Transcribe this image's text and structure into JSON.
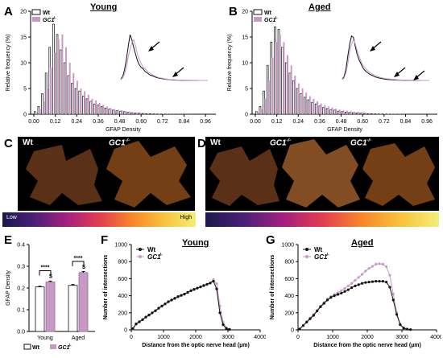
{
  "panels": {
    "A": {
      "letter": "A",
      "title": "Young"
    },
    "B": {
      "letter": "B",
      "title": "Aged"
    },
    "C": {
      "letter": "C",
      "img_labels": [
        "Wt",
        "GC1"
      ],
      "sup": "-/-"
    },
    "D": {
      "letter": "D",
      "img_labels": [
        "Wt",
        "GC1",
        "GC1"
      ],
      "sup": "-/-"
    },
    "E": {
      "letter": "E"
    },
    "F": {
      "letter": "F",
      "title": "Young"
    },
    "G": {
      "letter": "G",
      "title": "Aged"
    }
  },
  "colorbar": {
    "low": "Low",
    "high": "High"
  },
  "legend": {
    "wt": "Wt",
    "gc1": "GC1",
    "gc1_sup": "-/-"
  },
  "colors": {
    "wt": "#111111",
    "gc1": "#c79ac6",
    "wt_bar_fill": "#ffffff"
  },
  "chart_data": [
    {
      "type": "bar",
      "id": "A",
      "xlabel": "GFAP Density",
      "ylabel": "Relative frequency (%)",
      "ylim": [
        0,
        20
      ],
      "yticks": [
        0,
        5,
        10,
        15,
        20
      ],
      "xticks": [
        "0.00",
        "0.12",
        "0.24",
        "0.36",
        "0.48",
        "0.60",
        "0.72",
        "0.84",
        "0.96"
      ],
      "bin_width": 0.02,
      "series": [
        {
          "name": "Wt",
          "values": [
            0.5,
            1.5,
            4,
            8,
            13,
            17.5,
            15.5,
            12.5,
            10,
            7.5,
            6,
            5,
            4.5,
            3.5,
            3,
            2.5,
            2,
            1.8,
            1.5,
            1.2,
            1,
            0.8,
            0.7,
            0.6,
            0.5,
            0.4,
            0.3,
            0.25,
            0.2,
            0.15,
            0.1,
            0.1,
            0.08,
            0.05,
            0.05,
            0.04,
            0.03,
            0.02,
            0.02,
            0.01,
            0.01,
            0.01,
            0.01,
            0.01,
            0.01,
            0.01,
            0.01,
            0.01
          ]
        },
        {
          "name": "GC1",
          "values": [
            0.3,
            1,
            2.5,
            5,
            9,
            12,
            14.5,
            15.5,
            13,
            10,
            8,
            6.5,
            5,
            4.5,
            3.8,
            3,
            2.7,
            2.2,
            1.8,
            1.5,
            1.2,
            1,
            0.9,
            0.8,
            0.6,
            0.5,
            0.4,
            0.35,
            0.3,
            0.25,
            0.2,
            0.15,
            0.12,
            0.1,
            0.08,
            0.06,
            0.05,
            0.04,
            0.03,
            0.02,
            0.02,
            0.02,
            0.01,
            0.01,
            0.01,
            0.01,
            0.01,
            0.01
          ]
        }
      ]
    },
    {
      "type": "bar",
      "id": "B",
      "xlabel": "GFAP  Density",
      "ylabel": "Relative frequency (%)",
      "ylim": [
        0,
        20
      ],
      "yticks": [
        0,
        5,
        10,
        15,
        20
      ],
      "xticks": [
        "0.00",
        "0.12",
        "0.24",
        "0.36",
        "0.48",
        "0.60",
        "0.72",
        "0.84",
        "0.96"
      ],
      "bin_width": 0.02,
      "series": [
        {
          "name": "Wt",
          "values": [
            0.5,
            1.5,
            4.5,
            9.5,
            14,
            17,
            16.5,
            13,
            10,
            8,
            6.5,
            5,
            4,
            3.3,
            2.8,
            2.3,
            2,
            1.6,
            1.3,
            1.1,
            0.9,
            0.8,
            0.6,
            0.5,
            0.4,
            0.35,
            0.3,
            0.25,
            0.2,
            0.15,
            0.1,
            0.1,
            0.08,
            0.05,
            0.05,
            0.04,
            0.03,
            0.02,
            0.02,
            0.01,
            0.01,
            0.01,
            0.01,
            0.01,
            0.01,
            0.01,
            0.01,
            0.01
          ]
        },
        {
          "name": "GC1",
          "values": [
            0.3,
            1,
            3,
            6.5,
            11,
            14,
            15.5,
            14,
            11.5,
            9.5,
            7.5,
            6,
            5,
            4.2,
            3.5,
            3,
            2.5,
            2.1,
            1.8,
            1.5,
            1.3,
            1.1,
            0.9,
            0.8,
            0.7,
            0.6,
            0.5,
            0.45,
            0.4,
            0.3,
            0.25,
            0.2,
            0.15,
            0.12,
            0.1,
            0.08,
            0.06,
            0.05,
            0.04,
            0.03,
            0.02,
            0.02,
            0.02,
            0.01,
            0.01,
            0.01,
            0.01,
            0.01
          ]
        }
      ]
    },
    {
      "type": "bar",
      "id": "E",
      "ylabel": "GFAP Density",
      "ylim": [
        0.0,
        0.4
      ],
      "yticks": [
        "0.0",
        "0.1",
        "0.2",
        "0.3",
        "0.4"
      ],
      "categories": [
        "Young",
        "Aged"
      ],
      "series": [
        {
          "name": "Wt",
          "values": [
            0.205,
            0.212
          ],
          "errors": [
            0.003,
            0.004
          ]
        },
        {
          "name": "GC1",
          "values": [
            0.228,
            0.271
          ],
          "errors": [
            0.004,
            0.005
          ]
        }
      ],
      "annotations": [
        "****",
        "$",
        "****",
        "$"
      ]
    },
    {
      "type": "line",
      "id": "F",
      "xlabel": "Distance from the optic nerve head (µm)",
      "ylabel": "Number of intersections",
      "xlim": [
        0,
        4000
      ],
      "ylim": [
        0,
        1000
      ],
      "xticks": [
        0,
        1000,
        2000,
        3000,
        4000
      ],
      "yticks": [
        0,
        200,
        400,
        600,
        800,
        1000
      ],
      "x": [
        50,
        150,
        250,
        350,
        450,
        550,
        650,
        750,
        850,
        950,
        1050,
        1150,
        1250,
        1350,
        1450,
        1550,
        1650,
        1750,
        1850,
        1950,
        2050,
        2150,
        2250,
        2350,
        2450,
        2550,
        2650,
        2750,
        2850,
        2950,
        3050
      ],
      "series": [
        {
          "name": "Wt",
          "values": [
            15,
            70,
            95,
            120,
            150,
            175,
            200,
            225,
            255,
            280,
            305,
            330,
            350,
            370,
            390,
            405,
            420,
            440,
            460,
            475,
            490,
            505,
            520,
            535,
            550,
            570,
            480,
            200,
            60,
            15,
            5
          ]
        },
        {
          "name": "GC1",
          "values": [
            12,
            65,
            90,
            115,
            145,
            170,
            195,
            220,
            250,
            275,
            300,
            325,
            345,
            365,
            385,
            400,
            415,
            435,
            455,
            470,
            485,
            500,
            515,
            530,
            545,
            590,
            540,
            280,
            90,
            25,
            8
          ]
        }
      ]
    },
    {
      "type": "line",
      "id": "G",
      "xlabel": "Distance from the optic nerve head (µm)",
      "ylabel": "Number of intersections",
      "xlim": [
        0,
        4000
      ],
      "ylim": [
        0,
        1000
      ],
      "xticks": [
        0,
        1000,
        2000,
        3000,
        4000
      ],
      "yticks": [
        0,
        200,
        400,
        600,
        800,
        1000
      ],
      "x": [
        50,
        150,
        250,
        350,
        450,
        550,
        650,
        750,
        850,
        950,
        1050,
        1150,
        1250,
        1350,
        1450,
        1550,
        1650,
        1750,
        1850,
        1950,
        2050,
        2150,
        2250,
        2350,
        2450,
        2550,
        2650,
        2750,
        2850,
        2950,
        3050,
        3150,
        3250
      ],
      "series": [
        {
          "name": "Wt",
          "values": [
            10,
            50,
            90,
            130,
            170,
            220,
            270,
            310,
            350,
            380,
            400,
            415,
            430,
            450,
            470,
            495,
            515,
            530,
            545,
            555,
            560,
            565,
            570,
            570,
            570,
            560,
            500,
            350,
            180,
            60,
            20,
            8,
            3
          ]
        },
        {
          "name": "GC1",
          "values": [
            12,
            55,
            95,
            140,
            180,
            230,
            280,
            320,
            360,
            390,
            415,
            435,
            460,
            485,
            515,
            545,
            580,
            615,
            650,
            690,
            720,
            745,
            770,
            775,
            770,
            740,
            640,
            420,
            200,
            70,
            25,
            10,
            4
          ]
        }
      ]
    }
  ]
}
